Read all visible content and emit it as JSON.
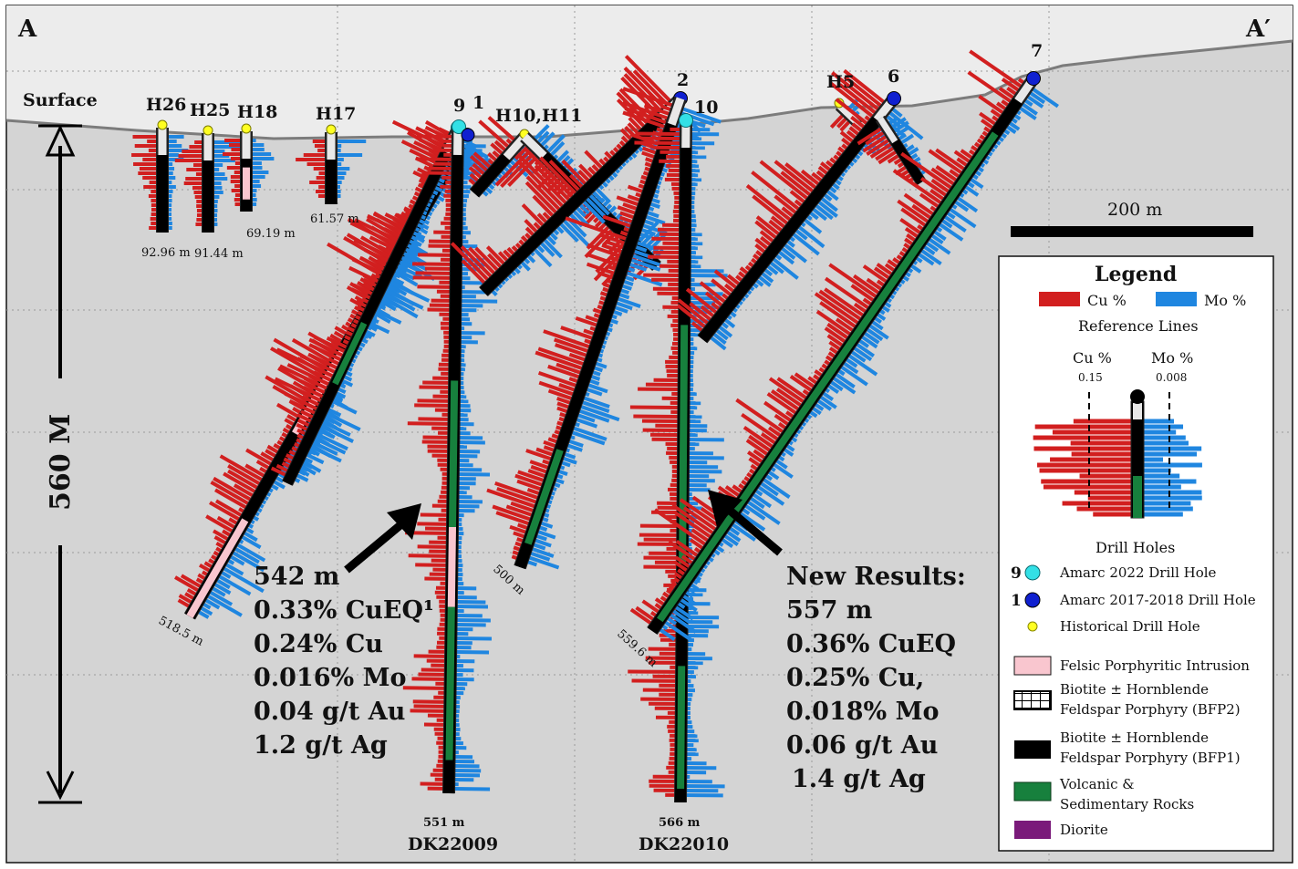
{
  "section": {
    "left_label": "A",
    "right_label": "A′",
    "surface_label": "Surface",
    "depth_label": "560 M",
    "scale_label": "200 m"
  },
  "colors": {
    "cu": "#d21f1f",
    "mo": "#1f86e0",
    "bfp1": "#000000",
    "felsic": "#f9c6cf",
    "volcanic": "#17803d",
    "diorite": "#7a1a7a",
    "amarc_2022": "#33e0e6",
    "amarc_2017": "#1020d0",
    "historical": "#ffff22",
    "background": "#d4d4d4",
    "sky": "#ececec"
  },
  "historical_holes": [
    {
      "name": "H26",
      "length": "92.96 m"
    },
    {
      "name": "H25",
      "length": "91.44 m"
    },
    {
      "name": "H18",
      "length": "69.19 m"
    },
    {
      "name": "H17",
      "length": "61.57 m"
    },
    {
      "name": "H10,H11"
    },
    {
      "name": "H5"
    }
  ],
  "amarc_holes": [
    {
      "number": "1"
    },
    {
      "number": "2"
    },
    {
      "number": "6"
    },
    {
      "number": "7"
    },
    {
      "number": "9"
    },
    {
      "number": "10"
    }
  ],
  "hole_lengths": {
    "h1": "518.5 m",
    "h10_h11": "500 m",
    "h2": "559.6 m",
    "dk22009": "551 m",
    "dk22010": "566 m"
  },
  "hole_ids": {
    "dk22009": "DK22009",
    "dk22010": "DK22010"
  },
  "intercept_dk22009": {
    "lines": [
      "542 m",
      "0.33% CuEQ¹",
      "0.24% Cu",
      "0.016% Mo",
      "0.04 g/t Au",
      "1.2 g/t Ag"
    ]
  },
  "intercept_dk22010": {
    "heading": "New Results:",
    "lines": [
      "557 m",
      "0.36% CuEQ",
      "0.25% Cu,",
      "0.018% Mo",
      "0.06 g/t Au",
      "1.4 g/t Ag"
    ]
  },
  "legend": {
    "title": "Legend",
    "cu_label": "Cu %",
    "mo_label": "Mo %",
    "reference_lines": "Reference Lines",
    "ref_cu_label": "Cu %",
    "ref_cu_value": "0.15",
    "ref_mo_label": "Mo %",
    "ref_mo_value": "0.008",
    "drill_holes_title": "Drill Holes",
    "drill_holes": [
      {
        "prefix": "9",
        "label": "Amarc 2022 Drill Hole"
      },
      {
        "prefix": "1",
        "label": "Amarc 2017-2018 Drill Hole"
      },
      {
        "prefix": "",
        "label": "Historical Drill Hole"
      }
    ],
    "lithology": [
      {
        "key": "felsic",
        "lines": [
          "Felsic Porphyritic Intrusion"
        ]
      },
      {
        "key": "bfp2",
        "lines": [
          "Biotite ± Hornblende",
          "Feldspar Porphyry (BFP2)"
        ]
      },
      {
        "key": "bfp1",
        "lines": [
          "Biotite ± Hornblende",
          "Feldspar Porphyry (BFP1)"
        ]
      },
      {
        "key": "volcanic",
        "lines": [
          "Volcanic &",
          "Sedimentary Rocks"
        ]
      },
      {
        "key": "diorite",
        "lines": [
          "Diorite"
        ]
      }
    ]
  }
}
